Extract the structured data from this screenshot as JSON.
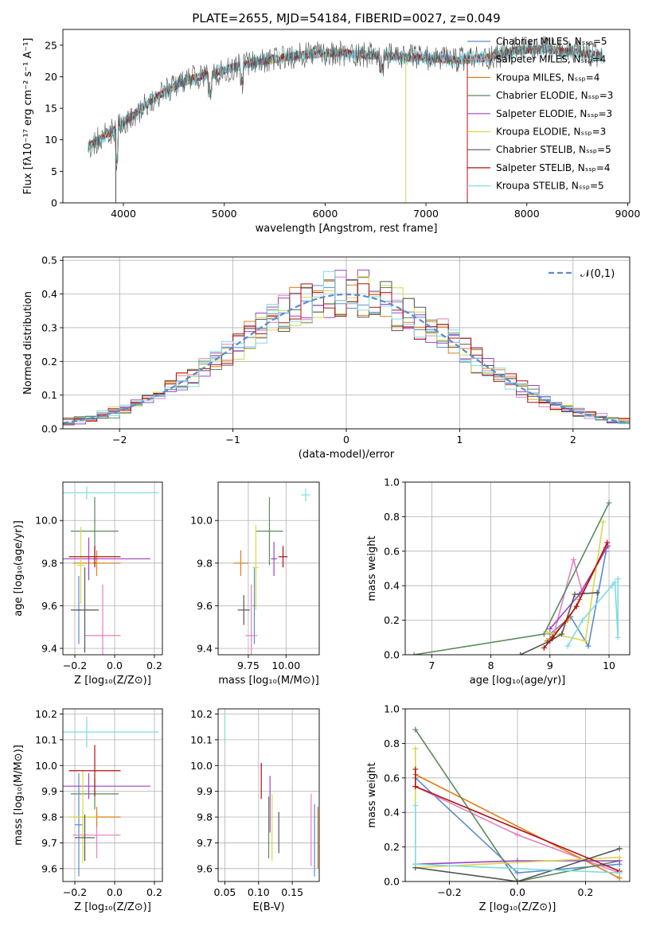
{
  "colors": [
    "#5b8bd0",
    "#e67fbf",
    "#e07b1a",
    "#5b8a5e",
    "#a040c8",
    "#d8d84a",
    "#555555",
    "#b01010",
    "#80dce0"
  ],
  "chart_data": [
    {
      "id": "spectrum",
      "type": "line",
      "title": "PLATE=2655, MJD=54184, FIBERID=0027, z=0.049",
      "xlabel": "wavelength [Angstrom, rest frame]",
      "ylabel": "Flux [fλ10⁻¹⁷ erg cm⁻² s⁻¹ A⁻¹]",
      "xlim": [
        3400,
        9020
      ],
      "ylim": [
        0,
        27.5
      ],
      "xticks": [
        4000,
        5000,
        6000,
        7000,
        8000,
        9000
      ],
      "yticks": [
        0,
        5,
        10,
        15,
        20,
        25
      ],
      "legend_position": "right",
      "legend": [
        "Chabrier MILES, Nₛₛₚ=5",
        "Salpeter MILES, Nₛₛₚ=4",
        "Kroupa MILES, Nₛₛₚ=4",
        "Chabrier ELODIE, Nₛₛₚ=3",
        "Salpeter ELODIE, Nₛₛₚ=3",
        "Kroupa ELODIE, Nₛₛₚ=3",
        "Chabrier STELIB, Nₛₛₚ=5",
        "Salpeter STELIB, Nₛₛₚ=4",
        "Kroupa STELIB, Nₛₛₚ=5"
      ],
      "continuum": [
        [
          3650,
          9
        ],
        [
          3750,
          10
        ],
        [
          3850,
          11
        ],
        [
          3950,
          12
        ],
        [
          4100,
          14
        ],
        [
          4300,
          16.5
        ],
        [
          4500,
          18.5
        ],
        [
          4700,
          19.8
        ],
        [
          4900,
          20.5
        ],
        [
          5100,
          21.5
        ],
        [
          5300,
          22.3
        ],
        [
          5500,
          22.8
        ],
        [
          5800,
          23.5
        ],
        [
          6100,
          23.8
        ],
        [
          6400,
          23.5
        ],
        [
          6700,
          23.2
        ],
        [
          7000,
          23
        ],
        [
          7300,
          22.6
        ],
        [
          7600,
          23
        ],
        [
          7900,
          24.2
        ],
        [
          8200,
          24.4
        ],
        [
          8500,
          23.8
        ],
        [
          8750,
          23.2
        ]
      ]
    },
    {
      "id": "residuals",
      "type": "line",
      "xlabel": "(data-model)/error",
      "ylabel": "Normed distribution",
      "xlim": [
        -2.5,
        2.5
      ],
      "ylim": [
        0,
        0.51
      ],
      "xticks": [
        -2,
        -1,
        0,
        1,
        2
      ],
      "yticks": [
        0.0,
        0.1,
        0.2,
        0.3,
        0.4,
        0.5
      ],
      "legend": [
        "𝒩(0,1)"
      ],
      "legend_position": "top-right",
      "grid": true
    },
    {
      "id": "age-vs-Z",
      "type": "scatter",
      "xlabel": "Z [log₁₀(Z/Z⊙)]",
      "ylabel": "age  [log₁₀(age/yr)]",
      "xlim": [
        -0.26,
        0.24
      ],
      "ylim": [
        9.37,
        10.18
      ],
      "xticks": [
        -0.2,
        0.0,
        0.2
      ],
      "yticks": [
        9.4,
        9.6,
        9.8,
        10.0
      ],
      "grid": true,
      "points": [
        {
          "x": -0.18,
          "y": 9.58,
          "xerr": [
            0.01,
            0.01
          ],
          "yerr": [
            0.16,
            0.16
          ]
        },
        {
          "x": -0.06,
          "y": 9.46,
          "xerr": [
            0.09,
            0.09
          ],
          "yerr": [
            0.24,
            0.24
          ]
        },
        {
          "x": -0.09,
          "y": 9.8,
          "xerr": [
            0.12,
            0.12
          ],
          "yerr": [
            0.06,
            0.06
          ]
        },
        {
          "x": -0.1,
          "y": 9.95,
          "xerr": [
            0.12,
            0.12
          ],
          "yerr": [
            0.16,
            0.16
          ]
        },
        {
          "x": -0.13,
          "y": 9.82,
          "xerr": [
            0.31,
            0.31
          ],
          "yerr": [
            0.1,
            0.1
          ]
        },
        {
          "x": -0.17,
          "y": 9.79,
          "xerr": [
            0.02,
            0.02
          ],
          "yerr": [
            0.18,
            0.18
          ]
        },
        {
          "x": -0.15,
          "y": 9.58,
          "xerr": [
            0.07,
            0.07
          ],
          "yerr": [
            0.2,
            0.2
          ]
        },
        {
          "x": -0.1,
          "y": 9.83,
          "xerr": [
            0.13,
            0.13
          ],
          "yerr": [
            0.05,
            0.05
          ]
        },
        {
          "x": -0.14,
          "y": 10.13,
          "xerr": [
            0.36,
            0.36
          ],
          "yerr": [
            0.03,
            0.03
          ]
        }
      ]
    },
    {
      "id": "age-vs-mass",
      "type": "scatter",
      "xlabel": "mass [log₁₀(M/M⊙)]",
      "ylabel": "",
      "xlim": [
        9.55,
        10.22
      ],
      "ylim": [
        9.37,
        10.18
      ],
      "xticks": [
        9.75,
        10.0
      ],
      "yticks": [
        9.4,
        9.6,
        9.8,
        10.0
      ],
      "grid": true,
      "points": [
        {
          "x": 9.79,
          "y": 9.6,
          "xerr": [
            0.01,
            0.01
          ],
          "yerr": [
            0.18,
            0.18
          ]
        },
        {
          "x": 9.77,
          "y": 9.46,
          "xerr": [
            0.04,
            0.04
          ],
          "yerr": [
            0.24,
            0.24
          ]
        },
        {
          "x": 9.7,
          "y": 9.8,
          "xerr": [
            0.05,
            0.05
          ],
          "yerr": [
            0.06,
            0.06
          ]
        },
        {
          "x": 9.89,
          "y": 9.95,
          "xerr": [
            0.09,
            0.09
          ],
          "yerr": [
            0.16,
            0.16
          ]
        },
        {
          "x": 9.92,
          "y": 9.82,
          "xerr": [
            0.02,
            0.02
          ],
          "yerr": [
            0.08,
            0.08
          ]
        },
        {
          "x": 9.8,
          "y": 9.78,
          "xerr": [
            0.02,
            0.02
          ],
          "yerr": [
            0.2,
            0.2
          ]
        },
        {
          "x": 9.72,
          "y": 9.58,
          "xerr": [
            0.04,
            0.04
          ],
          "yerr": [
            0.07,
            0.07
          ]
        },
        {
          "x": 9.98,
          "y": 9.83,
          "xerr": [
            0.03,
            0.03
          ],
          "yerr": [
            0.05,
            0.05
          ]
        },
        {
          "x": 10.13,
          "y": 10.12,
          "xerr": [
            0.03,
            0.03
          ],
          "yerr": [
            0.03,
            0.03
          ]
        }
      ]
    },
    {
      "id": "weight-vs-age",
      "type": "line",
      "xlabel": "age  [log₁₀(age/yr)]",
      "ylabel": "mass weight",
      "xlim": [
        6.55,
        10.35
      ],
      "ylim": [
        0,
        1.0
      ],
      "xticks": [
        7,
        8,
        9,
        10
      ],
      "yticks": [
        0.0,
        0.2,
        0.4,
        0.6,
        0.8,
        1.0
      ],
      "grid": true,
      "series": [
        {
          "points": [
            [
              9.0,
              0.12
            ],
            [
              9.35,
              0.22
            ],
            [
              9.65,
              0.05
            ],
            [
              9.95,
              0.6
            ]
          ]
        },
        {
          "points": [
            [
              9.05,
              0.1
            ],
            [
              9.4,
              0.55
            ],
            [
              9.55,
              0.36
            ],
            [
              9.95,
              0.62
            ]
          ]
        },
        {
          "points": [
            [
              8.95,
              0.08
            ],
            [
              9.3,
              0.2
            ],
            [
              9.5,
              0.32
            ],
            [
              9.95,
              0.62
            ]
          ]
        },
        {
          "points": [
            [
              6.7,
              0.0
            ],
            [
              8.9,
              0.12
            ],
            [
              10.0,
              0.88
            ]
          ]
        },
        {
          "points": [
            [
              9.0,
              0.15
            ],
            [
              9.5,
              0.35
            ],
            [
              9.98,
              0.63
            ]
          ]
        },
        {
          "points": [
            [
              8.95,
              0.13
            ],
            [
              9.6,
              0.08
            ],
            [
              9.9,
              0.77
            ]
          ]
        },
        {
          "points": [
            [
              8.5,
              0.0
            ],
            [
              9.0,
              0.08
            ],
            [
              9.2,
              0.12
            ],
            [
              9.42,
              0.35
            ],
            [
              9.8,
              0.36
            ]
          ]
        },
        {
          "points": [
            [
              8.9,
              0.04
            ],
            [
              9.05,
              0.1
            ],
            [
              9.45,
              0.28
            ],
            [
              9.97,
              0.65
            ]
          ]
        },
        {
          "points": [
            [
              9.3,
              0.05
            ],
            [
              9.55,
              0.2
            ],
            [
              10.05,
              0.4
            ],
            [
              10.1,
              0.42
            ],
            [
              10.15,
              0.1
            ],
            [
              10.15,
              0.44
            ]
          ]
        }
      ]
    },
    {
      "id": "mass-vs-Z",
      "type": "scatter",
      "xlabel": "Z [log₁₀(Z/Z⊙)]",
      "ylabel": "mass [log₁₀(M/M⊙)]",
      "xlim": [
        -0.26,
        0.24
      ],
      "ylim": [
        9.55,
        10.22
      ],
      "xticks": [
        -0.2,
        0.0,
        0.2
      ],
      "yticks": [
        9.6,
        9.7,
        9.8,
        9.9,
        10.0,
        10.1,
        10.2
      ],
      "grid": true,
      "points": [
        {
          "x": -0.18,
          "y": 9.77,
          "xerr": [
            0.02,
            0.02
          ],
          "yerr": [
            0.2,
            0.2
          ]
        },
        {
          "x": -0.09,
          "y": 9.73,
          "xerr": [
            0.12,
            0.12
          ],
          "yerr": [
            0.09,
            0.09
          ]
        },
        {
          "x": -0.09,
          "y": 9.8,
          "xerr": [
            0.12,
            0.12
          ],
          "yerr": [
            0.04,
            0.04
          ]
        },
        {
          "x": -0.1,
          "y": 9.89,
          "xerr": [
            0.12,
            0.12
          ],
          "yerr": [
            0.06,
            0.06
          ]
        },
        {
          "x": -0.13,
          "y": 9.92,
          "xerr": [
            0.31,
            0.31
          ],
          "yerr": [
            0.05,
            0.05
          ]
        },
        {
          "x": -0.16,
          "y": 9.8,
          "xerr": [
            0.07,
            0.07
          ],
          "yerr": [
            0.18,
            0.18
          ]
        },
        {
          "x": -0.15,
          "y": 9.72,
          "xerr": [
            0.05,
            0.05
          ],
          "yerr": [
            0.09,
            0.09
          ]
        },
        {
          "x": -0.1,
          "y": 9.98,
          "xerr": [
            0.13,
            0.13
          ],
          "yerr": [
            0.1,
            0.1
          ]
        },
        {
          "x": -0.14,
          "y": 10.13,
          "xerr": [
            0.36,
            0.36
          ],
          "yerr": [
            0.06,
            0.06
          ]
        }
      ]
    },
    {
      "id": "mass-vs-EBV",
      "type": "scatter",
      "xlabel": "E(B-V)",
      "ylabel": "",
      "xlim": [
        0.04,
        0.19
      ],
      "ylim": [
        9.55,
        10.22
      ],
      "xticks": [
        0.05,
        0.1,
        0.15
      ],
      "yticks": [
        9.6,
        9.7,
        9.8,
        9.9,
        10.0,
        10.1,
        10.2
      ],
      "grid": true,
      "points": [
        {
          "x": 0.183,
          "y": 9.71,
          "xerr": [
            0,
            0
          ],
          "yerr": [
            0.14,
            0.14
          ]
        },
        {
          "x": 0.178,
          "y": 9.75,
          "xerr": [
            0,
            0
          ],
          "yerr": [
            0.14,
            0.14
          ]
        },
        {
          "x": 0.188,
          "y": 9.72,
          "xerr": [
            0,
            0
          ],
          "yerr": [
            0.12,
            0.12
          ]
        },
        {
          "x": 0.115,
          "y": 9.76,
          "xerr": [
            0,
            0
          ],
          "yerr": [
            0.12,
            0.12
          ]
        },
        {
          "x": 0.117,
          "y": 9.85,
          "xerr": [
            0,
            0
          ],
          "yerr": [
            0.11,
            0.11
          ]
        },
        {
          "x": 0.12,
          "y": 9.76,
          "xerr": [
            0,
            0
          ],
          "yerr": [
            0.13,
            0.13
          ]
        },
        {
          "x": 0.13,
          "y": 9.74,
          "xerr": [
            0,
            0
          ],
          "yerr": [
            0.08,
            0.08
          ]
        },
        {
          "x": 0.104,
          "y": 9.94,
          "xerr": [
            0,
            0
          ],
          "yerr": [
            0.07,
            0.07
          ]
        },
        {
          "x": 0.05,
          "y": 10.15,
          "xerr": [
            0,
            0
          ],
          "yerr": [
            0.06,
            0.06
          ]
        }
      ]
    },
    {
      "id": "weight-vs-Z",
      "type": "line",
      "xlabel": "Z [log₁₀(Z/Z⊙)]",
      "ylabel": "mass weight",
      "xlim": [
        -0.33,
        0.33
      ],
      "ylim": [
        0,
        1.0
      ],
      "xticks": [
        -0.2,
        0.0,
        0.2
      ],
      "yticks": [
        0.0,
        0.2,
        0.4,
        0.6,
        0.8,
        1.0
      ],
      "grid": true,
      "series": [
        {
          "points": [
            [
              -0.3,
              0.6
            ],
            [
              0.0,
              0.05
            ],
            [
              0.3,
              0.1
            ]
          ]
        },
        {
          "points": [
            [
              -0.3,
              0.55
            ],
            [
              0.0,
              0.27
            ],
            [
              0.3,
              0.05
            ]
          ]
        },
        {
          "points": [
            [
              -0.3,
              0.62
            ],
            [
              0.3,
              0.02
            ]
          ]
        },
        {
          "points": [
            [
              -0.3,
              0.88
            ],
            [
              0.0,
              0.0
            ],
            [
              0.3,
              0.12
            ]
          ]
        },
        {
          "points": [
            [
              -0.3,
              0.1
            ],
            [
              0.0,
              0.12
            ],
            [
              0.3,
              0.12
            ]
          ]
        },
        {
          "points": [
            [
              -0.3,
              0.77
            ],
            [
              -0.3,
              0.08
            ],
            [
              0.3,
              0.14
            ]
          ]
        },
        {
          "points": [
            [
              -0.3,
              0.08
            ],
            [
              0.0,
              0.0
            ],
            [
              0.3,
              0.19
            ]
          ]
        },
        {
          "points": [
            [
              -0.3,
              0.65
            ],
            [
              -0.3,
              0.55
            ],
            [
              0.3,
              0.06
            ]
          ]
        },
        {
          "points": [
            [
              -0.3,
              0.44
            ],
            [
              -0.3,
              0.1
            ],
            [
              0.3,
              0.05
            ]
          ]
        }
      ]
    }
  ]
}
